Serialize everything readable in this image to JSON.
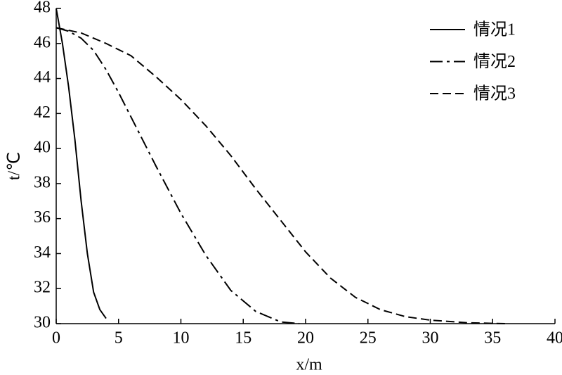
{
  "chart_data": {
    "type": "line",
    "xlabel": "x/m",
    "ylabel": "t/℃",
    "xlim": [
      0,
      40
    ],
    "xticks": [
      0,
      5,
      10,
      15,
      20,
      25,
      30,
      35,
      40
    ],
    "ylim": [
      30,
      48
    ],
    "yticks": [
      30,
      32,
      34,
      36,
      38,
      40,
      42,
      44,
      46,
      48
    ],
    "legend": "upper right",
    "series": [
      {
        "name": "情况1",
        "color": "#000000",
        "dash": "solid",
        "x": [
          0,
          0.5,
          1,
          1.5,
          2,
          2.5,
          3,
          3.5,
          4
        ],
        "values": [
          48,
          46,
          43.5,
          40.5,
          37,
          34,
          31.8,
          30.8,
          30.3
        ]
      },
      {
        "name": "情况2",
        "color": "#000000",
        "dash": "dashdot",
        "x": [
          0,
          1,
          2,
          3,
          4,
          5,
          6,
          8,
          10,
          12,
          14,
          16,
          18,
          19.5
        ],
        "values": [
          46.9,
          46.7,
          46.3,
          45.6,
          44.5,
          43.2,
          41.8,
          39,
          36.3,
          33.9,
          31.9,
          30.7,
          30.1,
          30
        ]
      },
      {
        "name": "情况3",
        "color": "#000000",
        "dash": "dashed",
        "x": [
          0,
          2,
          4,
          6,
          8,
          10,
          12,
          14,
          16,
          18,
          20,
          22,
          24,
          26,
          28,
          30,
          33,
          36
        ],
        "values": [
          46.9,
          46.6,
          46.0,
          45.3,
          44.1,
          42.8,
          41.3,
          39.6,
          37.7,
          35.9,
          34.1,
          32.6,
          31.5,
          30.8,
          30.4,
          30.2,
          30.05,
          30
        ]
      }
    ]
  }
}
